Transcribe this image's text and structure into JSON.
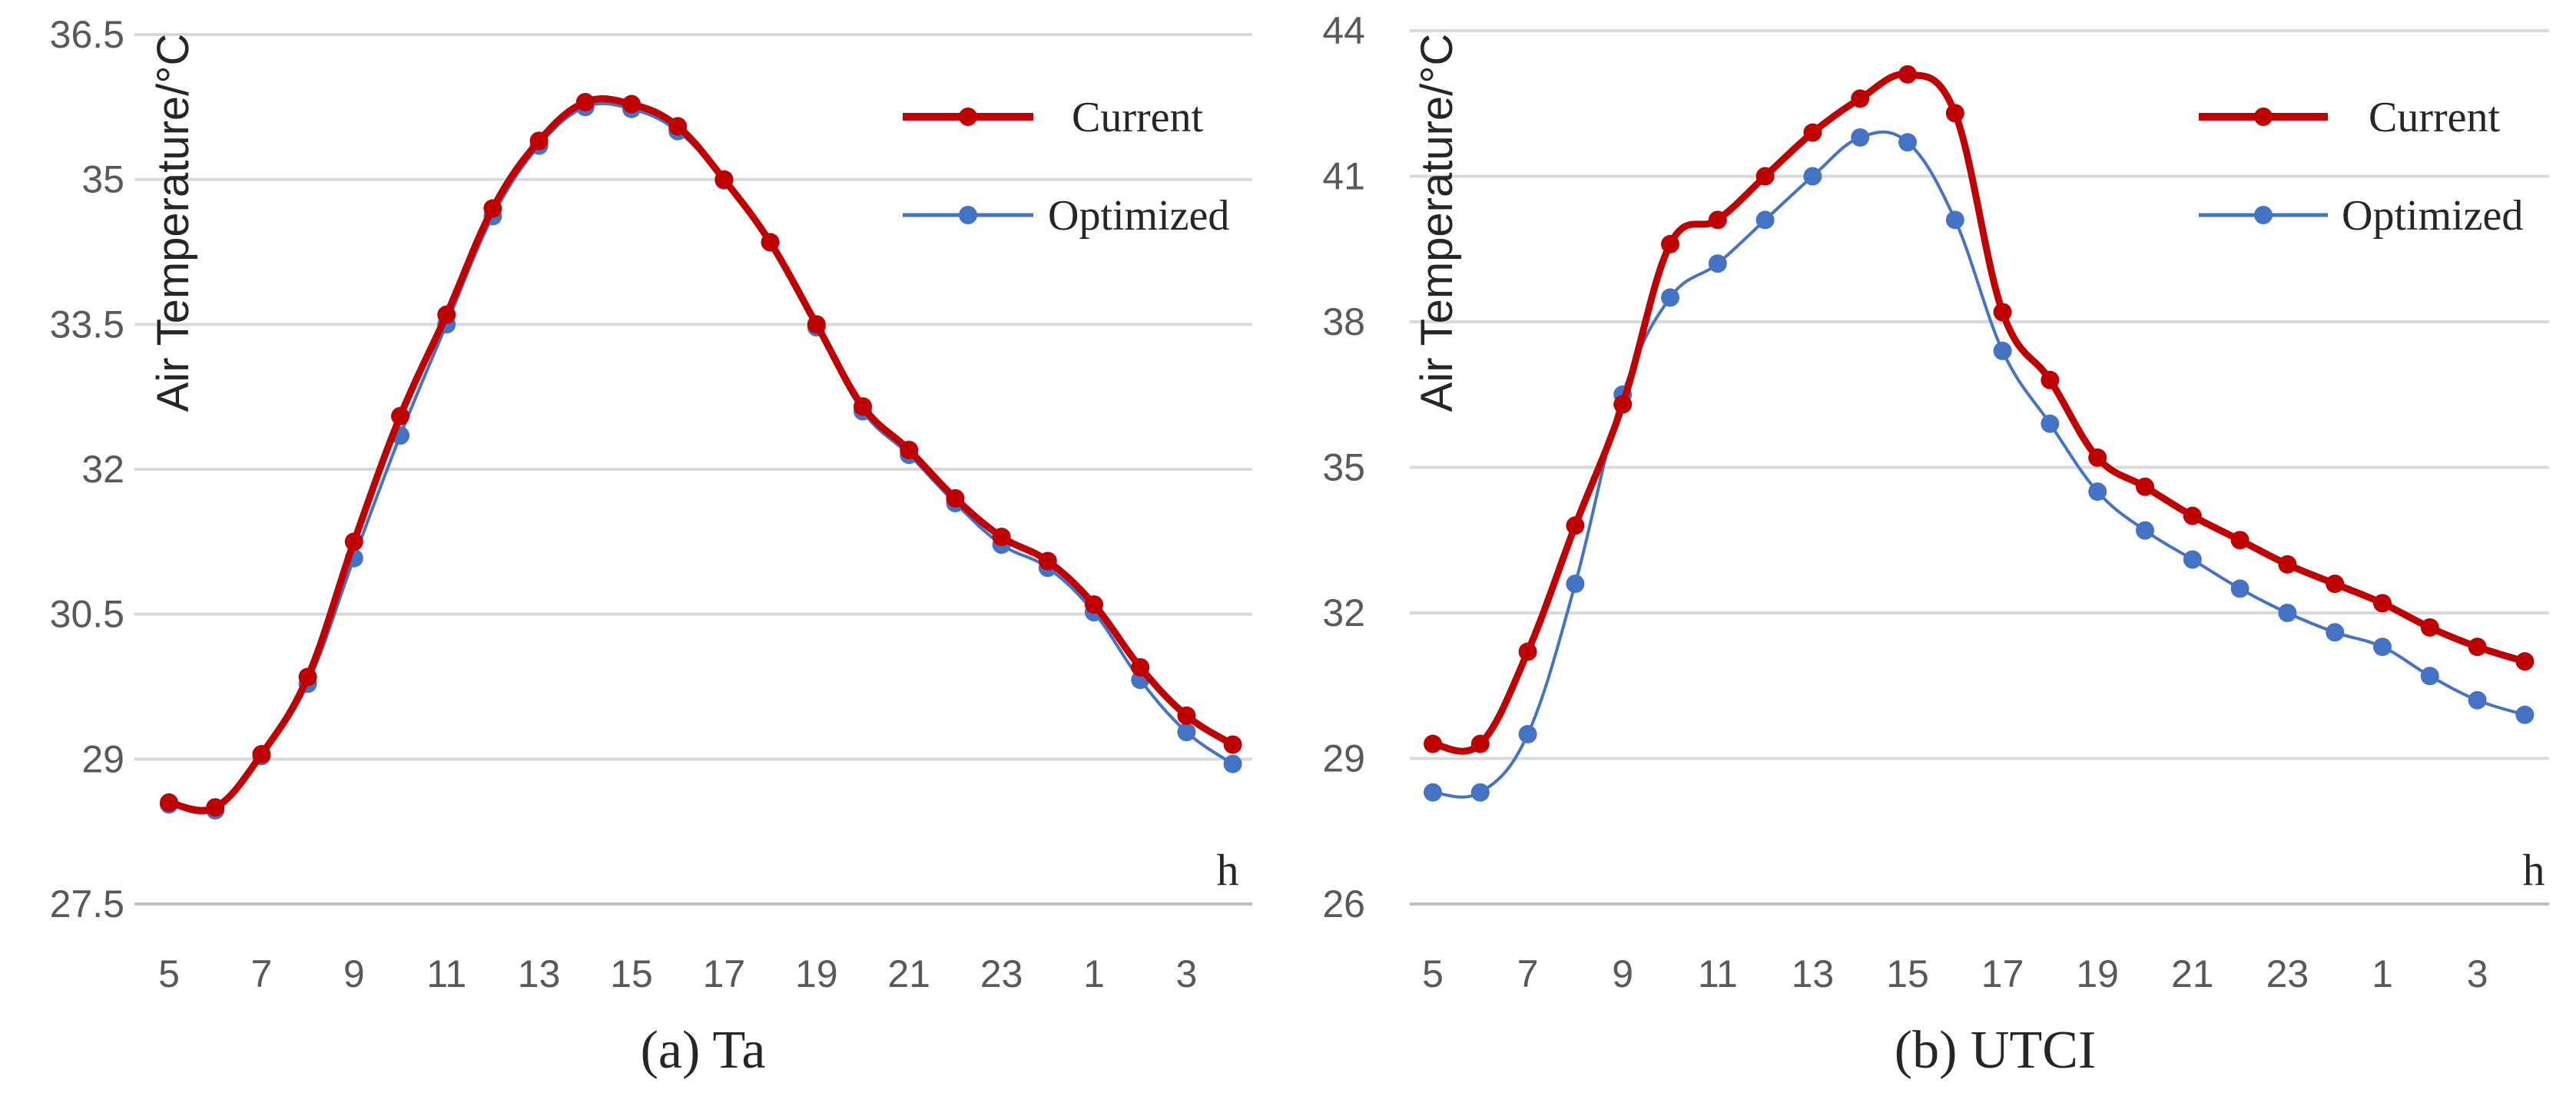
{
  "chart_data": [
    {
      "type": "line",
      "caption": "(a) Ta",
      "ylabel": "Air Temperature/°C",
      "xlabel": "h",
      "ylim": [
        27.5,
        36.5
      ],
      "yticks": [
        "27.5",
        "29",
        "30.5",
        "32",
        "33.5",
        "35",
        "36.5"
      ],
      "grid": true,
      "legend": "top-right",
      "categories": [
        "5",
        "6",
        "7",
        "8",
        "9",
        "10",
        "11",
        "12",
        "13",
        "14",
        "15",
        "16",
        "17",
        "18",
        "19",
        "20",
        "21",
        "22",
        "23",
        "24",
        "1",
        "2",
        "3",
        "4"
      ],
      "tick_labels": [
        "5",
        "7",
        "9",
        "11",
        "13",
        "15",
        "17",
        "19",
        "21",
        "23",
        "1",
        "3"
      ],
      "series": [
        {
          "name": "Current",
          "color": "#C00000",
          "values": [
            28.55,
            28.5,
            29.05,
            29.85,
            31.25,
            32.55,
            33.6,
            34.7,
            35.4,
            35.8,
            35.78,
            35.55,
            35.0,
            34.35,
            33.5,
            32.65,
            32.2,
            31.7,
            31.3,
            31.05,
            30.6,
            29.95,
            29.45,
            29.15
          ],
          "style": "thick"
        },
        {
          "name": "Optimized",
          "color": "#4472C4",
          "values": [
            28.53,
            28.47,
            29.03,
            29.78,
            31.08,
            32.35,
            33.5,
            34.62,
            35.35,
            35.75,
            35.73,
            35.5,
            34.99,
            34.35,
            33.47,
            32.6,
            32.15,
            31.65,
            31.22,
            30.98,
            30.52,
            29.82,
            29.28,
            28.95
          ],
          "style": "thin"
        }
      ]
    },
    {
      "type": "line",
      "caption": "(b) UTCI",
      "ylabel": "Air Temperature/°C",
      "xlabel": "h",
      "ylim": [
        26,
        44
      ],
      "yticks": [
        "26",
        "29",
        "32",
        "35",
        "38",
        "41",
        "44"
      ],
      "grid": true,
      "legend": "top-right",
      "categories": [
        "5",
        "6",
        "7",
        "8",
        "9",
        "10",
        "11",
        "12",
        "13",
        "14",
        "15",
        "16",
        "17",
        "18",
        "19",
        "20",
        "21",
        "22",
        "23",
        "24",
        "1",
        "2",
        "3",
        "4"
      ],
      "tick_labels": [
        "5",
        "7",
        "9",
        "11",
        "13",
        "15",
        "17",
        "19",
        "21",
        "23",
        "1",
        "3"
      ],
      "series": [
        {
          "name": "Current",
          "color": "#C00000",
          "values": [
            29.3,
            29.3,
            31.2,
            33.8,
            36.3,
            39.6,
            40.1,
            41.0,
            41.9,
            42.6,
            43.1,
            42.3,
            38.2,
            36.8,
            35.2,
            34.6,
            34.0,
            33.5,
            33.0,
            32.6,
            32.2,
            31.7,
            31.3,
            31.0
          ],
          "style": "thick"
        },
        {
          "name": "Optimized",
          "color": "#4472C4",
          "values": [
            28.3,
            28.3,
            29.5,
            32.6,
            36.5,
            38.5,
            39.2,
            40.1,
            41.0,
            41.8,
            41.7,
            40.1,
            37.4,
            35.9,
            34.5,
            33.7,
            33.1,
            32.5,
            32.0,
            31.6,
            31.3,
            30.7,
            30.2,
            29.9
          ],
          "style": "thin"
        }
      ]
    }
  ]
}
